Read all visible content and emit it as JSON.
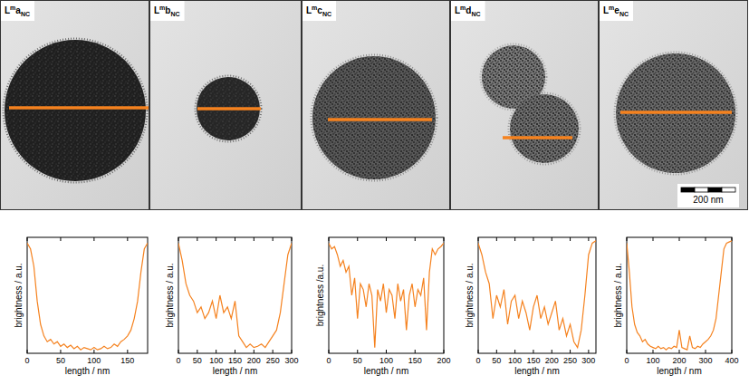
{
  "images": [
    {
      "label": {
        "base": "L",
        "sup": "m",
        "letter": "a",
        "sub": "NC"
      }
    },
    {
      "label": {
        "base": "L",
        "sup": "m",
        "letter": "b",
        "sub": "NC"
      }
    },
    {
      "label": {
        "base": "L",
        "sup": "m",
        "letter": "c",
        "sub": "NC"
      }
    },
    {
      "label": {
        "base": "L",
        "sup": "m",
        "letter": "d",
        "sub": "NC"
      }
    },
    {
      "label": {
        "base": "L",
        "sup": "m",
        "letter": "e",
        "sub": "NC"
      }
    }
  ],
  "scale_bar": "200 nm",
  "chart_data": [
    {
      "type": "line",
      "xlabel": "length / nm",
      "ylabel": "brightness / a.u.",
      "tick_labels": "x",
      "xlim": [
        0,
        180
      ],
      "xticks": [
        0,
        50,
        100,
        150
      ],
      "ylim": [
        0,
        1
      ],
      "yticks": [],
      "x": [
        0,
        5,
        10,
        15,
        20,
        25,
        30,
        35,
        40,
        45,
        50,
        55,
        60,
        65,
        70,
        75,
        80,
        85,
        90,
        95,
        100,
        105,
        110,
        115,
        120,
        125,
        130,
        135,
        140,
        145,
        150,
        155,
        160,
        165,
        170,
        175,
        180
      ],
      "series": [
        {
          "color": "#f5821f",
          "values": [
            0.95,
            0.9,
            0.75,
            0.45,
            0.25,
            0.15,
            0.1,
            0.12,
            0.08,
            0.1,
            0.06,
            0.08,
            0.05,
            0.07,
            0.04,
            0.06,
            0.03,
            0.05,
            0.04,
            0.03,
            0.05,
            0.03,
            0.04,
            0.06,
            0.04,
            0.05,
            0.08,
            0.06,
            0.1,
            0.12,
            0.15,
            0.2,
            0.3,
            0.45,
            0.7,
            0.9,
            0.95
          ]
        }
      ]
    },
    {
      "type": "line",
      "xlabel": "length / nm",
      "ylabel": "brightness / a.u.",
      "tick_labels": "x",
      "xlim": [
        0,
        300
      ],
      "xticks": [
        0,
        50,
        100,
        150,
        200,
        250,
        300
      ],
      "ylim": [
        0,
        1
      ],
      "yticks": [],
      "x": [
        0,
        10,
        20,
        30,
        40,
        50,
        60,
        70,
        80,
        90,
        100,
        110,
        120,
        130,
        140,
        150,
        160,
        170,
        180,
        190,
        200,
        210,
        220,
        230,
        240,
        250,
        260,
        270,
        280,
        290,
        300
      ],
      "series": [
        {
          "color": "#f5821f",
          "values": [
            0.95,
            0.8,
            0.6,
            0.5,
            0.45,
            0.35,
            0.4,
            0.3,
            0.35,
            0.45,
            0.3,
            0.5,
            0.35,
            0.4,
            0.3,
            0.45,
            0.15,
            0.1,
            0.05,
            0.08,
            0.05,
            0.06,
            0.08,
            0.05,
            0.1,
            0.15,
            0.2,
            0.35,
            0.6,
            0.85,
            0.95
          ]
        }
      ]
    },
    {
      "type": "line",
      "xlabel": "length / nm",
      "ylabel": "brightness /a.u.",
      "tick_labels": "x",
      "xlim": [
        0,
        200
      ],
      "xticks": [
        0,
        50,
        100,
        150,
        200
      ],
      "ylim": [
        0,
        1
      ],
      "yticks": [],
      "x": [
        0,
        5,
        10,
        15,
        20,
        25,
        30,
        35,
        40,
        45,
        50,
        55,
        60,
        65,
        70,
        75,
        80,
        85,
        90,
        95,
        100,
        105,
        110,
        115,
        120,
        125,
        130,
        135,
        140,
        145,
        150,
        155,
        160,
        165,
        170,
        175,
        180,
        185,
        190,
        195,
        200
      ],
      "series": [
        {
          "color": "#f5821f",
          "values": [
            0.95,
            0.9,
            0.92,
            0.85,
            0.75,
            0.8,
            0.7,
            0.75,
            0.5,
            0.65,
            0.3,
            0.6,
            0.55,
            0.4,
            0.6,
            0.5,
            0.05,
            0.55,
            0.45,
            0.6,
            0.35,
            0.55,
            0.5,
            0.3,
            0.6,
            0.45,
            0.55,
            0.2,
            0.5,
            0.6,
            0.4,
            0.55,
            0.5,
            0.65,
            0.2,
            0.7,
            0.9,
            0.85,
            0.9,
            0.92,
            0.95
          ]
        }
      ]
    },
    {
      "type": "line",
      "xlabel": "length / nm",
      "ylabel": "brightness / a.u.",
      "tick_labels": "x",
      "xlim": [
        0,
        320
      ],
      "xticks": [
        0,
        50,
        100,
        150,
        200,
        250,
        300
      ],
      "ylim": [
        0,
        1
      ],
      "yticks": [],
      "x": [
        0,
        10,
        20,
        30,
        40,
        50,
        60,
        70,
        80,
        90,
        100,
        110,
        120,
        130,
        140,
        150,
        160,
        170,
        180,
        190,
        200,
        210,
        220,
        230,
        240,
        250,
        260,
        270,
        280,
        290,
        300,
        310,
        320
      ],
      "series": [
        {
          "color": "#f5821f",
          "values": [
            0.95,
            0.85,
            0.7,
            0.6,
            0.3,
            0.5,
            0.4,
            0.55,
            0.25,
            0.45,
            0.5,
            0.3,
            0.45,
            0.35,
            0.2,
            0.4,
            0.5,
            0.3,
            0.4,
            0.25,
            0.35,
            0.45,
            0.2,
            0.3,
            0.15,
            0.25,
            0.1,
            0.05,
            0.2,
            0.5,
            0.85,
            0.95,
            0.97
          ]
        }
      ]
    },
    {
      "type": "line",
      "xlabel": "length / nm",
      "ylabel": "brightness / a.u.",
      "tick_labels": "x",
      "xlim": [
        0,
        400
      ],
      "xticks": [
        0,
        100,
        200,
        300,
        400
      ],
      "ylim": [
        0,
        1
      ],
      "yticks": [],
      "x": [
        0,
        10,
        20,
        30,
        40,
        50,
        60,
        70,
        80,
        90,
        100,
        110,
        120,
        130,
        140,
        150,
        160,
        170,
        180,
        190,
        200,
        210,
        220,
        230,
        240,
        250,
        260,
        270,
        280,
        290,
        300,
        310,
        320,
        330,
        340,
        350,
        360,
        370,
        380,
        390,
        400
      ],
      "series": [
        {
          "color": "#f5821f",
          "values": [
            0.95,
            0.7,
            0.4,
            0.25,
            0.18,
            0.15,
            0.1,
            0.12,
            0.08,
            0.06,
            0.05,
            0.04,
            0.06,
            0.04,
            0.05,
            0.03,
            0.05,
            0.04,
            0.06,
            0.05,
            0.2,
            0.05,
            0.04,
            0.03,
            0.15,
            0.05,
            0.04,
            0.06,
            0.05,
            0.08,
            0.1,
            0.12,
            0.15,
            0.2,
            0.3,
            0.5,
            0.7,
            0.9,
            0.95,
            0.96,
            0.97
          ]
        }
      ]
    }
  ]
}
